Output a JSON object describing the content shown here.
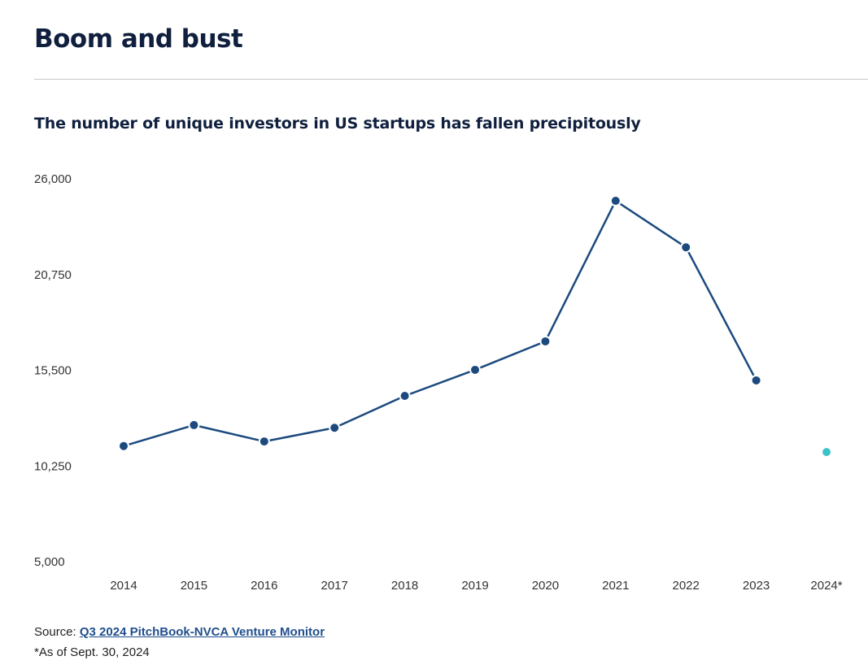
{
  "header": {
    "title": "Boom and bust"
  },
  "chart_data": {
    "type": "line",
    "title": "The number of unique investors in US startups has fallen precipitously",
    "xlabel": "",
    "ylabel": "",
    "categories": [
      "2014",
      "2015",
      "2016",
      "2017",
      "2018",
      "2019",
      "2020",
      "2021",
      "2022",
      "2023",
      "2024*"
    ],
    "series": [
      {
        "name": "Unique investors",
        "color": "#1c4a7e",
        "values": [
          11300,
          12450,
          11550,
          12300,
          14050,
          15480,
          17040,
          24750,
          22200,
          14900,
          null
        ]
      },
      {
        "name": "2024 (as of Sept. 30)",
        "color": "#3cc3c9",
        "values": [
          null,
          null,
          null,
          null,
          null,
          null,
          null,
          null,
          null,
          null,
          10970
        ]
      }
    ],
    "ylim": [
      5000,
      26000
    ],
    "yticks": [
      5000,
      10250,
      15500,
      20750,
      26000
    ],
    "ytick_labels": [
      "5,000",
      "10,250",
      "15,500",
      "20,750",
      "26,000"
    ],
    "grid": false,
    "legend": "none"
  },
  "footer": {
    "source_label": "Source: ",
    "source_link": "Q3 2024 PitchBook-NVCA Venture Monitor",
    "note": "*As of Sept. 30, 2024"
  }
}
